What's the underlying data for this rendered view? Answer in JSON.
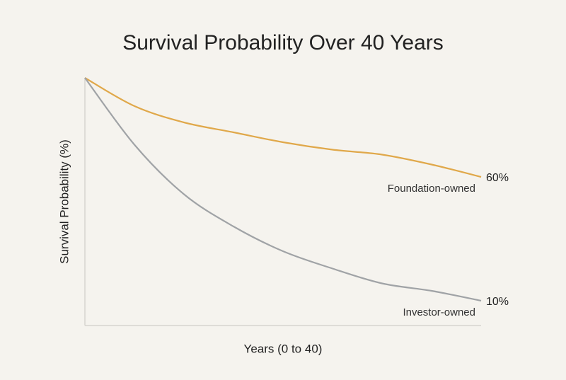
{
  "chart_data": {
    "type": "line",
    "title": "Survival Probability Over 40 Years",
    "xlabel": "Years (0 to 40)",
    "ylabel": "Survival Probability (%)",
    "x": [
      0,
      5,
      10,
      15,
      20,
      25,
      30,
      35,
      40
    ],
    "xlim": [
      0,
      40
    ],
    "ylim": [
      0,
      100
    ],
    "series": [
      {
        "name": "Foundation-owned",
        "color": "#e0a84a",
        "values": [
          100,
          88.6,
          82,
          78,
          74,
          71,
          69,
          65,
          60
        ],
        "value_labels": [
          null,
          null,
          null,
          null,
          null,
          null,
          null,
          null,
          "60%"
        ]
      },
      {
        "name": "Investor-owned",
        "color": "#a0a3a6",
        "values": [
          100,
          73,
          53,
          40,
          30,
          23,
          17,
          14,
          10
        ],
        "value_labels": [
          null,
          null,
          null,
          null,
          null,
          null,
          null,
          null,
          "10%"
        ]
      }
    ]
  }
}
